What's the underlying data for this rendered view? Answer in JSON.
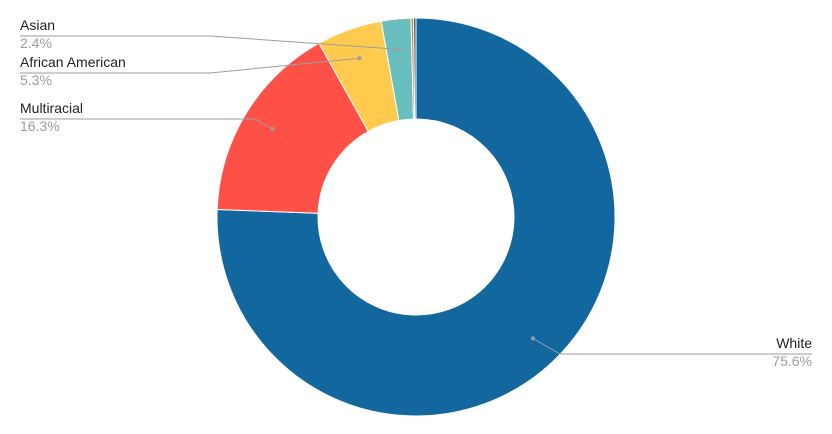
{
  "chart_data": {
    "type": "pie",
    "donut": true,
    "slices": [
      {
        "name": "White",
        "value": 75.6,
        "label": "75.6%",
        "color": "#12679e"
      },
      {
        "name": "Multiracial",
        "value": 16.3,
        "label": "16.3%",
        "color": "#fd5046"
      },
      {
        "name": "African American",
        "value": 5.3,
        "label": "5.3%",
        "color": "#fecb4f"
      },
      {
        "name": "Asian",
        "value": 2.4,
        "label": "2.4%",
        "color": "#68bfbd"
      },
      {
        "name": "",
        "value": 0.2,
        "label": "",
        "color": "#f36f21"
      },
      {
        "name": "",
        "value": 0.2,
        "label": "",
        "color": "#12679e"
      }
    ]
  }
}
